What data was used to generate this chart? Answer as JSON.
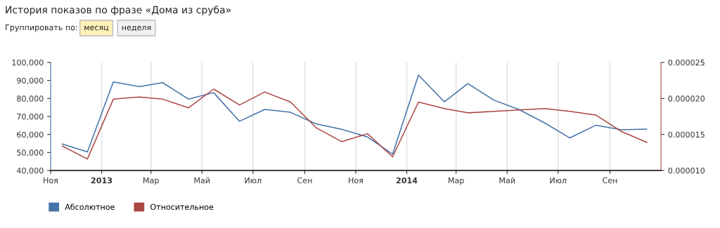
{
  "chart_data": {
    "type": "line",
    "title": "История показов по фразе «Дома из сруба»",
    "annotations": [
      "Группировать по:",
      "месяц",
      "неделя"
    ],
    "x": [
      "2012-11-15",
      "2012-12-15",
      "2013-01-15",
      "2013-02-15",
      "2013-03-15",
      "2013-04-15",
      "2013-05-15",
      "2013-06-15",
      "2013-07-15",
      "2013-08-15",
      "2013-09-15",
      "2013-10-15",
      "2013-11-15",
      "2013-12-15",
      "2014-01-15",
      "2014-02-15",
      "2014-03-15",
      "2014-04-15",
      "2014-05-15",
      "2014-06-15",
      "2014-07-15",
      "2014-08-15",
      "2014-09-15",
      "2014-10-15"
    ],
    "series": [
      {
        "name": "Абсолютное",
        "color": "#4572a7",
        "values": [
          54700,
          50300,
          89200,
          86600,
          88800,
          79600,
          83200,
          67300,
          73900,
          72300,
          65800,
          62900,
          58600,
          49100,
          93000,
          78100,
          88300,
          79100,
          73900,
          66400,
          58100,
          65100,
          62600,
          63000
        ]
      },
      {
        "name": "Относительное",
        "color": "#aa4643",
        "axis": "y2",
        "values": [
          1.34e-05,
          1.16e-05,
          1.99e-05,
          2.02e-05,
          1.99e-05,
          1.87e-05,
          2.13e-05,
          1.91e-05,
          2.09e-05,
          1.95e-05,
          1.59e-05,
          1.4e-05,
          1.51e-05,
          1.19e-05,
          1.95e-05,
          1.86e-05,
          1.8e-05,
          1.82e-05,
          1.84e-05,
          1.86e-05,
          1.82e-05,
          1.77e-05,
          1.54e-05,
          1.39e-05
        ]
      }
    ],
    "xlim": [
      "2012-11-01",
      "2014-11-01"
    ],
    "xticks": [
      {
        "value": "2012-11-01",
        "label": "Ноя"
      },
      {
        "value": "2013-01-01",
        "label": "2013"
      },
      {
        "value": "2013-03-01",
        "label": "Мар"
      },
      {
        "value": "2013-05-01",
        "label": "Май"
      },
      {
        "value": "2013-07-01",
        "label": "Июл"
      },
      {
        "value": "2013-09-01",
        "label": "Сен"
      },
      {
        "value": "2013-11-01",
        "label": "Ноя"
      },
      {
        "value": "2014-01-01",
        "label": "2014"
      },
      {
        "value": "2014-03-01",
        "label": "Мар"
      },
      {
        "value": "2014-05-01",
        "label": "Май"
      },
      {
        "value": "2014-07-01",
        "label": "Июл"
      },
      {
        "value": "2014-09-01",
        "label": "Сен"
      }
    ],
    "ylim": [
      40000,
      100000
    ],
    "yticks": [
      {
        "value": 40000,
        "label": "40,000"
      },
      {
        "value": 50000,
        "label": "50,000"
      },
      {
        "value": 60000,
        "label": "60,000"
      },
      {
        "value": 70000,
        "label": "70,000"
      },
      {
        "value": 80000,
        "label": "80,000"
      },
      {
        "value": 90000,
        "label": "90,000"
      },
      {
        "value": 100000,
        "label": "100,000"
      }
    ],
    "y2lim": [
      1e-05,
      2.5e-05
    ],
    "y2ticks": [
      {
        "value": 1e-05,
        "label": "0.000010"
      },
      {
        "value": 1.5e-05,
        "label": "0.000015"
      },
      {
        "value": 2e-05,
        "label": "0.000020"
      },
      {
        "value": 2.5e-05,
        "label": "0.000025"
      }
    ],
    "grid": "x",
    "legend": "bottom left",
    "marker": "none",
    "line_style": "solid"
  }
}
